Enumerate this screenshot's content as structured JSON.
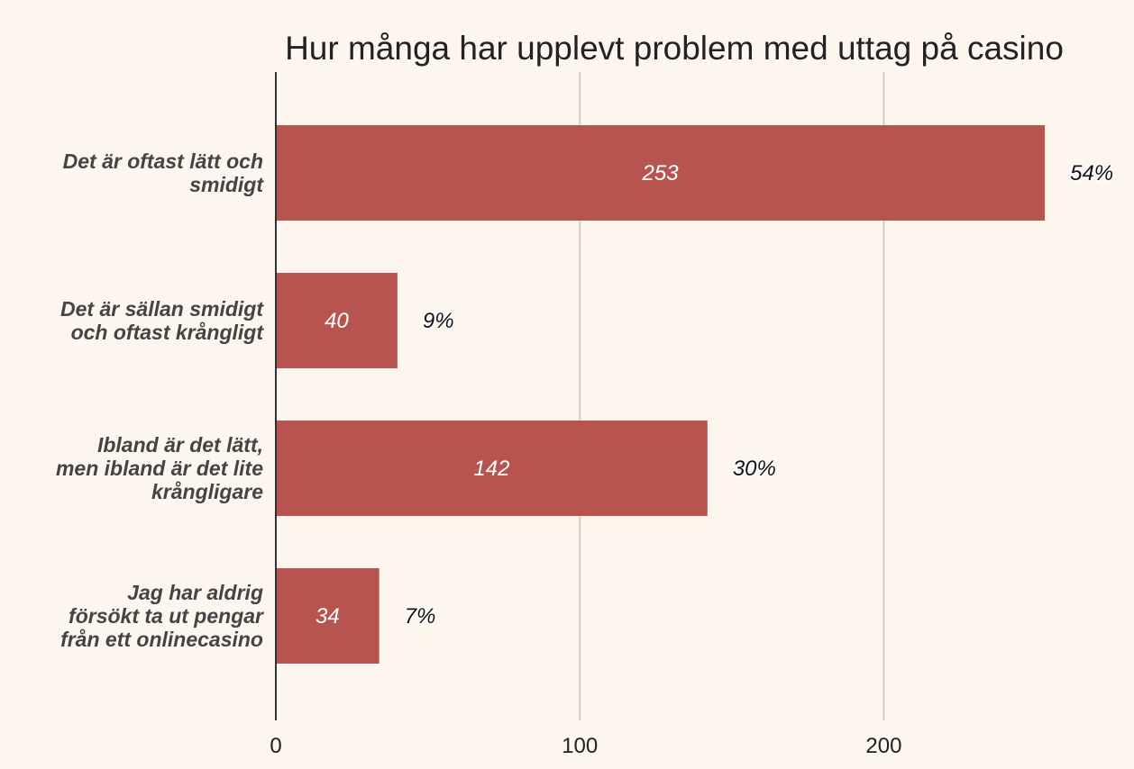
{
  "chart_data": {
    "type": "bar",
    "orientation": "horizontal",
    "title": "Hur många har upplevt problem med uttag på casino",
    "categories": [
      [
        "Det är oftast lätt och",
        "smidigt"
      ],
      [
        "Det är sällan smidigt",
        "och oftast krångligt"
      ],
      [
        "Ibland är det lätt,",
        "men ibland är det lite",
        "krångligare"
      ],
      [
        "Jag har aldrig",
        "försökt ta ut pengar",
        "från ett onlinecasino"
      ]
    ],
    "values": [
      253,
      40,
      142,
      34
    ],
    "value_labels": [
      "253",
      "40",
      "142",
      "34"
    ],
    "percent_labels": [
      "54%",
      "9%",
      "30%",
      "7%"
    ],
    "xlim": [
      0,
      280
    ],
    "xticks": [
      0,
      100,
      200
    ],
    "xtick_labels": [
      "0",
      "100",
      "200"
    ],
    "grid": true,
    "legend": "none",
    "colors": {
      "bar": "#b85450",
      "background": "#fdf6ee",
      "grid": "#d0ccc6",
      "axis": "#333333"
    }
  }
}
